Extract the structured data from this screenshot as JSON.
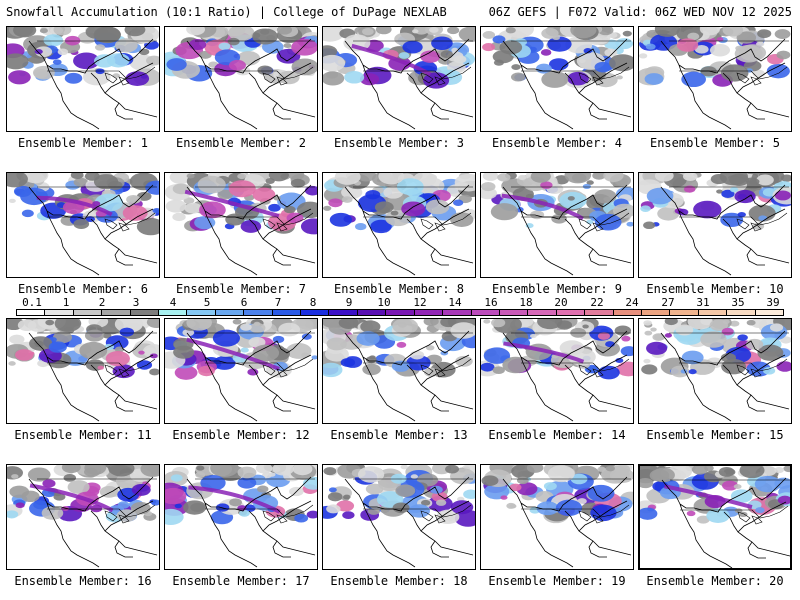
{
  "header": {
    "left_title": "Snowfall Accumulation (10:1 Ratio) | College of DuPage NEXLAB",
    "right_title": "06Z GEFS | F072 Valid: 06Z WED NOV 12 2025"
  },
  "members": [
    {
      "label": "Ensemble Member: 1",
      "v": 2
    },
    {
      "label": "Ensemble Member: 2",
      "v": 2
    },
    {
      "label": "Ensemble Member: 3",
      "v": 3
    },
    {
      "label": "Ensemble Member: 4",
      "v": 2
    },
    {
      "label": "Ensemble Member: 5",
      "v": 2
    },
    {
      "label": "Ensemble Member: 6",
      "v": 3
    },
    {
      "label": "Ensemble Member: 7",
      "v": 3
    },
    {
      "label": "Ensemble Member: 8",
      "v": 2
    },
    {
      "label": "Ensemble Member: 9",
      "v": 3
    },
    {
      "label": "Ensemble Member: 10",
      "v": 2
    },
    {
      "label": "Ensemble Member: 11",
      "v": 2
    },
    {
      "label": "Ensemble Member: 12",
      "v": 3
    },
    {
      "label": "Ensemble Member: 13",
      "v": 2
    },
    {
      "label": "Ensemble Member: 14",
      "v": 3
    },
    {
      "label": "Ensemble Member: 15",
      "v": 2
    },
    {
      "label": "Ensemble Member: 16",
      "v": 3
    },
    {
      "label": "Ensemble Member: 17",
      "v": 3
    },
    {
      "label": "Ensemble Member: 18",
      "v": 2
    },
    {
      "label": "Ensemble Member: 19",
      "v": 2
    },
    {
      "label": "Ensemble Member: 20",
      "v": 3
    }
  ],
  "legend": {
    "labels": [
      "0.1",
      "1",
      "2",
      "3",
      "4",
      "5",
      "6",
      "7",
      "8",
      "9",
      "10",
      "12",
      "14",
      "16",
      "18",
      "20",
      "22",
      "24",
      "27",
      "31",
      "35",
      "39"
    ],
    "colors": [
      "#ffffff",
      "#e6e6e6",
      "#c8c8c8",
      "#a6a6a6",
      "#7e7e7e",
      "#a8f0f0",
      "#86c8f4",
      "#6aa8f0",
      "#4c82ec",
      "#2a5ae6",
      "#1a2ee0",
      "#3c10c8",
      "#5a10b4",
      "#7a18b4",
      "#9226b6",
      "#a838b8",
      "#bc4cbc",
      "#ca5ab8",
      "#d668b8",
      "#e070b0",
      "#e27c9c",
      "#e8907e",
      "#eca482",
      "#f0b48e",
      "#f4c8a8",
      "#f8dcc4",
      "#fcecdc"
    ]
  },
  "map_colors": {
    "gray": [
      "#dcdcdc",
      "#c0c0c0",
      "#9c9c9c",
      "#7a7a7a"
    ],
    "blue": [
      "#9ed8f2",
      "#6a9cf0",
      "#3a66ea",
      "#1c34e0"
    ],
    "purple": [
      "#5a18c0",
      "#8a22b6",
      "#c04ab8",
      "#e070a8"
    ]
  }
}
